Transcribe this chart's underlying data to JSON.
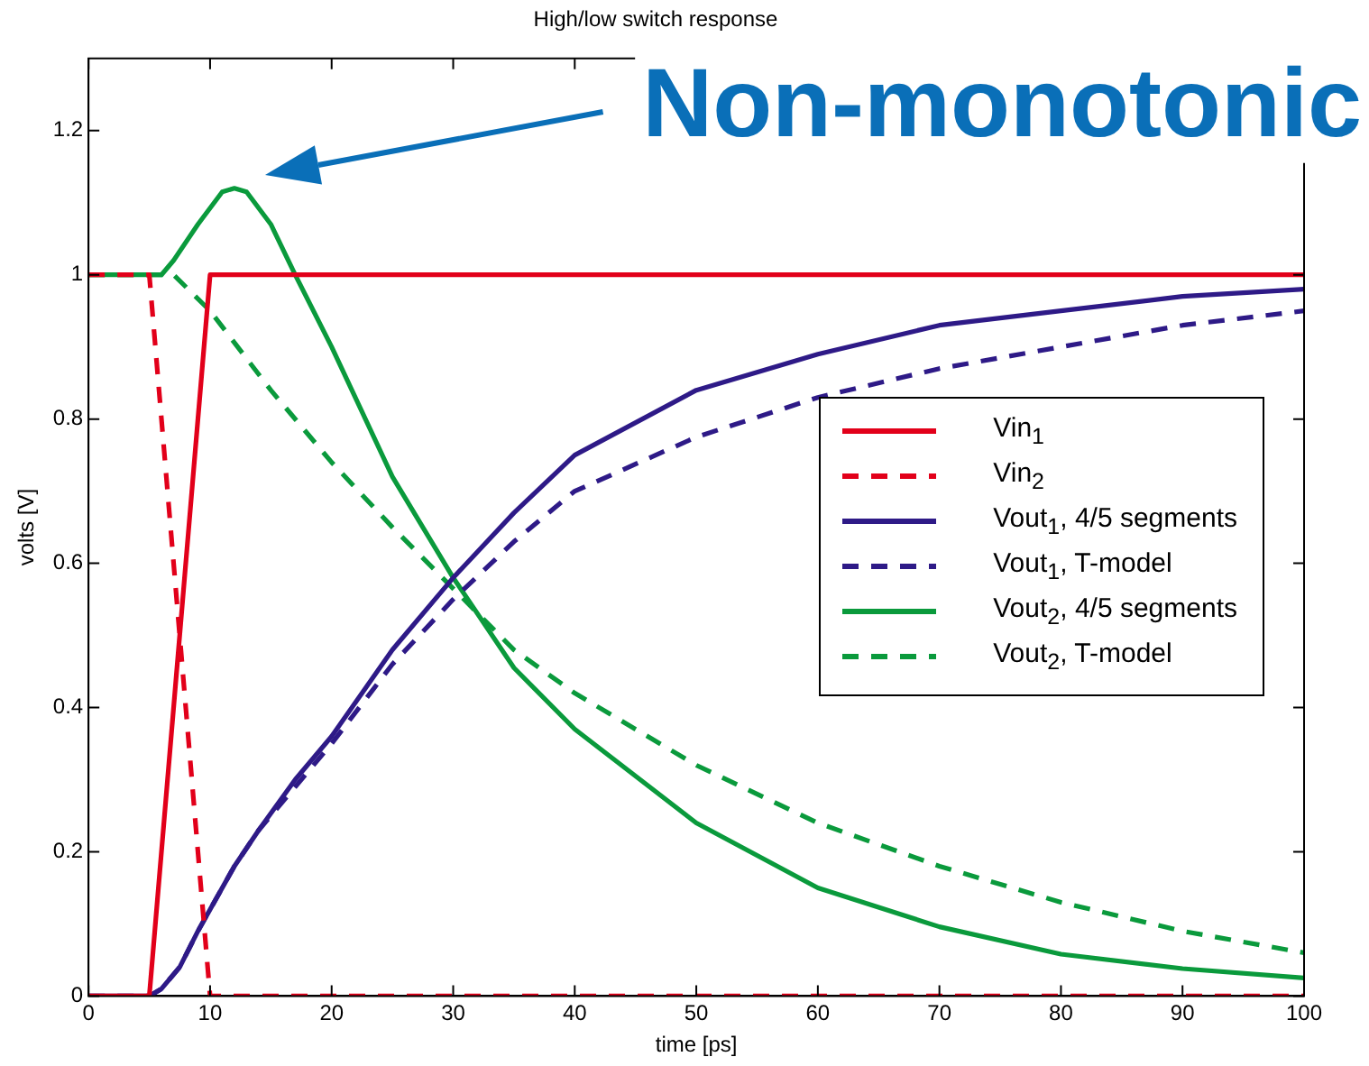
{
  "chart_data": {
    "type": "line",
    "title": "High/low switch response",
    "xlabel": "time [ps]",
    "ylabel": "volts [V]",
    "xlim": [
      0,
      100
    ],
    "xticks": [
      0,
      10,
      20,
      30,
      40,
      50,
      60,
      70,
      80,
      90,
      100
    ],
    "ylim": [
      0,
      1.3
    ],
    "yticks": [
      0,
      0.2,
      0.4,
      0.6,
      0.8,
      1,
      1.2
    ],
    "grid": false,
    "legend": "right",
    "marker": "none",
    "annotations": [
      "Non-monotonic"
    ],
    "series": [
      {
        "name": "Vin$_{1}$",
        "color": "#e2001a",
        "line_style": "solid",
        "x": [
          0,
          5,
          10,
          100
        ],
        "values": [
          0,
          0,
          1,
          1
        ]
      },
      {
        "name": "Vin$_{2}$",
        "color": "#e2001a",
        "line_style": "dashed",
        "x": [
          0,
          5,
          10,
          100
        ],
        "values": [
          1,
          1,
          0,
          0
        ]
      },
      {
        "name": "Vout$_{1}$, 4/5 segments",
        "color": "#2e1a87",
        "line_style": "solid",
        "x": [
          0,
          5,
          6,
          7.5,
          9,
          10,
          12,
          14,
          17,
          20,
          25,
          30,
          35,
          40,
          50,
          60,
          70,
          80,
          90,
          100
        ],
        "values": [
          0,
          0,
          0.01,
          0.04,
          0.09,
          0.12,
          0.18,
          0.23,
          0.3,
          0.36,
          0.48,
          0.58,
          0.67,
          0.75,
          0.84,
          0.89,
          0.93,
          0.95,
          0.97,
          0.98
        ]
      },
      {
        "name": "Vout$_{1}$, T-model",
        "color": "#2e1a87",
        "line_style": "dashed",
        "x": [
          0,
          5,
          6,
          7.5,
          9,
          10,
          12,
          14,
          17,
          20,
          25,
          30,
          35,
          40,
          50,
          60,
          70,
          80,
          90,
          100
        ],
        "values": [
          0,
          0,
          0.01,
          0.04,
          0.09,
          0.12,
          0.18,
          0.23,
          0.29,
          0.35,
          0.46,
          0.55,
          0.63,
          0.7,
          0.775,
          0.83,
          0.87,
          0.9,
          0.93,
          0.95
        ]
      },
      {
        "name": "Vout$_{2}$, 4/5 segments",
        "color": "#0a9a3c",
        "line_style": "solid",
        "x": [
          0,
          5,
          6,
          7,
          9,
          11,
          12,
          13,
          15,
          17,
          20,
          25,
          30,
          35,
          40,
          50,
          60,
          70,
          80,
          90,
          100
        ],
        "values": [
          1,
          1,
          1,
          1.02,
          1.07,
          1.115,
          1.12,
          1.115,
          1.07,
          1,
          0.9,
          0.72,
          0.58,
          0.455,
          0.37,
          0.24,
          0.15,
          0.096,
          0.058,
          0.038,
          0.025
        ]
      },
      {
        "name": "Vout$_{2}$, T-model",
        "color": "#0a9a3c",
        "line_style": "dashed",
        "x": [
          0,
          5,
          7,
          10,
          15,
          20,
          25,
          30,
          35,
          40,
          50,
          60,
          70,
          80,
          90,
          100
        ],
        "values": [
          1,
          1,
          1,
          0.95,
          0.84,
          0.74,
          0.65,
          0.565,
          0.48,
          0.42,
          0.32,
          0.24,
          0.18,
          0.13,
          0.09,
          0.06
        ]
      }
    ]
  }
}
